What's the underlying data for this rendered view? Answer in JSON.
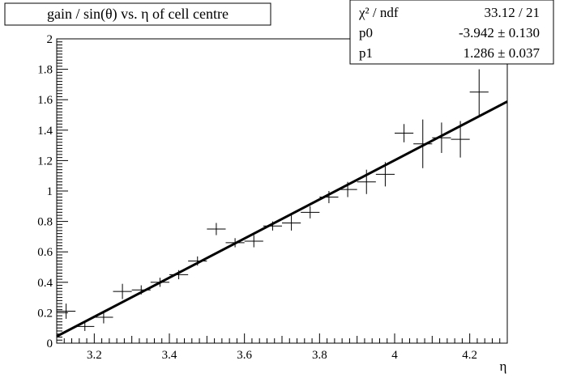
{
  "chart_data": {
    "type": "scatter",
    "title": "gain / sin(θ) vs. η of cell centre",
    "xlabel": "η",
    "ylabel": "",
    "xlim": [
      3.1,
      4.3
    ],
    "ylim": [
      0,
      2.0
    ],
    "xticks": [
      3.2,
      3.4,
      3.6,
      3.8,
      4.0,
      4.2
    ],
    "xtick_labels": [
      "3.2",
      "3.4",
      "3.6",
      "3.8",
      "4",
      "4.2"
    ],
    "yticks": [
      0,
      0.2,
      0.4,
      0.6,
      0.8,
      1.0,
      1.2,
      1.4,
      1.6,
      1.8,
      2.0
    ],
    "ytick_labels": [
      "0",
      "0.2",
      "0.4",
      "0.6",
      "0.8",
      "1",
      "1.2",
      "1.4",
      "1.6",
      "1.8",
      "2"
    ],
    "grid": false,
    "series": [
      {
        "points": [
          {
            "x": 3.125,
            "y": 0.21,
            "xerr": 0.025,
            "yerr": 0.05
          },
          {
            "x": 3.175,
            "y": 0.11,
            "xerr": 0.025,
            "yerr": 0.03
          },
          {
            "x": 3.225,
            "y": 0.17,
            "xerr": 0.025,
            "yerr": 0.04
          },
          {
            "x": 3.275,
            "y": 0.34,
            "xerr": 0.025,
            "yerr": 0.05
          },
          {
            "x": 3.325,
            "y": 0.35,
            "xerr": 0.025,
            "yerr": 0.03
          },
          {
            "x": 3.375,
            "y": 0.4,
            "xerr": 0.025,
            "yerr": 0.03
          },
          {
            "x": 3.425,
            "y": 0.45,
            "xerr": 0.025,
            "yerr": 0.03
          },
          {
            "x": 3.475,
            "y": 0.54,
            "xerr": 0.025,
            "yerr": 0.03
          },
          {
            "x": 3.525,
            "y": 0.75,
            "xerr": 0.025,
            "yerr": 0.04
          },
          {
            "x": 3.575,
            "y": 0.66,
            "xerr": 0.025,
            "yerr": 0.03
          },
          {
            "x": 3.625,
            "y": 0.67,
            "xerr": 0.025,
            "yerr": 0.04
          },
          {
            "x": 3.675,
            "y": 0.77,
            "xerr": 0.025,
            "yerr": 0.03
          },
          {
            "x": 3.725,
            "y": 0.79,
            "xerr": 0.025,
            "yerr": 0.05
          },
          {
            "x": 3.775,
            "y": 0.86,
            "xerr": 0.025,
            "yerr": 0.04
          },
          {
            "x": 3.825,
            "y": 0.96,
            "xerr": 0.025,
            "yerr": 0.04
          },
          {
            "x": 3.875,
            "y": 1.01,
            "xerr": 0.025,
            "yerr": 0.05
          },
          {
            "x": 3.925,
            "y": 1.06,
            "xerr": 0.025,
            "yerr": 0.08
          },
          {
            "x": 3.975,
            "y": 1.11,
            "xerr": 0.025,
            "yerr": 0.08
          },
          {
            "x": 4.025,
            "y": 1.38,
            "xerr": 0.025,
            "yerr": 0.06
          },
          {
            "x": 4.075,
            "y": 1.31,
            "xerr": 0.025,
            "yerr": 0.16
          },
          {
            "x": 4.125,
            "y": 1.35,
            "xerr": 0.025,
            "yerr": 0.1
          },
          {
            "x": 4.175,
            "y": 1.34,
            "xerr": 0.025,
            "yerr": 0.12
          },
          {
            "x": 4.225,
            "y": 1.65,
            "xerr": 0.025,
            "yerr": 0.15
          }
        ]
      }
    ],
    "fit": {
      "type": "linear",
      "p0": -3.942,
      "p1": 1.286,
      "xrange": [
        3.1,
        4.3
      ]
    },
    "stats_box": {
      "rows": [
        {
          "label": "χ² / ndf",
          "value": "33.12 / 21"
        },
        {
          "label": "p0",
          "value": "-3.942 ± 0.130"
        },
        {
          "label": "p1",
          "value": "1.286 ± 0.037"
        }
      ]
    }
  }
}
